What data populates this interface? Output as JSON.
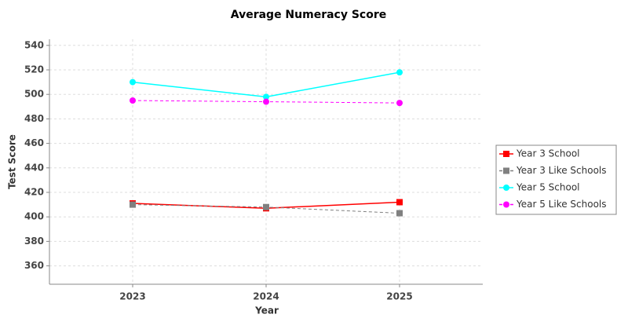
{
  "chart_data": {
    "type": "line",
    "title": "Average Numeracy Score",
    "x_label": "Year",
    "y_label": "Test Score",
    "categories": [
      "2023",
      "2024",
      "2025"
    ],
    "series": [
      {
        "name": "Year 3 School",
        "color": "#ff0000",
        "marker": "square",
        "dashed": false,
        "values": [
          411,
          407,
          412
        ]
      },
      {
        "name": "Year 3 Like Schools",
        "color": "#808080",
        "marker": "square",
        "dashed": true,
        "values": [
          410,
          408,
          403
        ]
      },
      {
        "name": "Year 5 School",
        "color": "#00ffff",
        "marker": "circle",
        "dashed": false,
        "values": [
          510,
          498,
          518
        ]
      },
      {
        "name": "Year 5 Like Schools",
        "color": "#ff00ff",
        "marker": "circle",
        "dashed": true,
        "values": [
          495,
          494,
          493
        ]
      }
    ],
    "ylim": [
      345,
      545
    ],
    "yticks": [
      360,
      380,
      400,
      420,
      440,
      460,
      480,
      500,
      520,
      540
    ],
    "grid": true,
    "legend": "right"
  }
}
